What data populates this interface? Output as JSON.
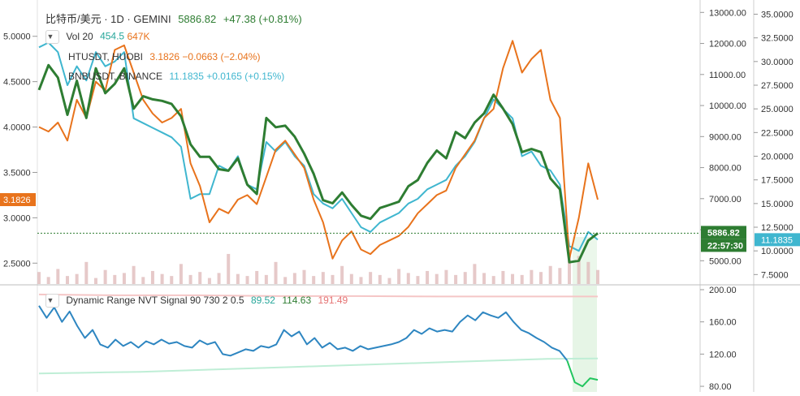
{
  "header": {
    "symbol": "比特币/美元 · 1D · GEMINI",
    "price": "5886.82",
    "change": "+47.38 (+0.81%)"
  },
  "legend": {
    "vol_label": "Vol 20",
    "vol_value": "454.5",
    "vol_value2": "647K",
    "ht_label": "HTUSDT, HUOBI",
    "ht_values": "3.1826 −0.0663 (−2.04%)",
    "bnb_label": "BNBUSDT, BINANCE",
    "bnb_values": "11.1835 +0.0165 (+0.15%)"
  },
  "indicator": {
    "label": "Dynamic Range NVT Signal 90 730 2 0.5",
    "v1": "89.52",
    "v2": "114.63",
    "v3": "191.49"
  },
  "badges": {
    "ht": "3.1826",
    "btc": "5886.82",
    "time": "22:57:30",
    "bnb": "11.1835"
  },
  "colors": {
    "btc": "#2e7d32",
    "ht": "#e8731c",
    "bnb": "#3fb6cf",
    "nvt": "#2e86c1",
    "upper_band": "#f5c6c6",
    "lower_band": "#bfeed6",
    "volume": "#e0bcbc",
    "highlight": "#e6f5e6"
  },
  "chart_data": [
    {
      "type": "line",
      "name": "main-price-pane",
      "left_axis": {
        "ticks": [
          "5.0000",
          "4.5000",
          "4.0000",
          "3.5000",
          "3.0000",
          "2.5000"
        ],
        "range": [
          2.27,
          5.4
        ]
      },
      "mid_axis": {
        "ticks": [
          "13000.00",
          "12000.00",
          "11000.00",
          "10000.00",
          "9000.00",
          "8000.00",
          "7000.00",
          "6000.00",
          "5000.00"
        ],
        "range": [
          4250,
          13400
        ]
      },
      "right_axis": {
        "ticks": [
          "35.0000",
          "32.5000",
          "30.0000",
          "27.5000",
          "25.0000",
          "22.5000",
          "20.0000",
          "17.5000",
          "15.0000",
          "12.5000",
          "10.0000",
          "7.5000"
        ],
        "range": [
          6.5,
          36.5
        ]
      },
      "series": [
        {
          "name": "HTUSDT, HUOBI",
          "scale": "left",
          "values": [
            4.0,
            3.95,
            4.05,
            3.85,
            4.3,
            4.1,
            4.5,
            4.4,
            4.85,
            4.9,
            4.6,
            4.3,
            4.15,
            4.05,
            4.1,
            4.2,
            3.6,
            3.35,
            2.95,
            3.1,
            3.05,
            3.2,
            3.25,
            3.15,
            3.45,
            3.75,
            3.85,
            3.7,
            3.55,
            3.2,
            2.95,
            2.55,
            2.75,
            2.85,
            2.65,
            2.6,
            2.7,
            2.75,
            2.8,
            2.9,
            3.05,
            3.15,
            3.25,
            3.3,
            3.55,
            3.7,
            3.85,
            4.1,
            4.2,
            4.65,
            4.95,
            4.6,
            4.75,
            4.85,
            4.3,
            4.1,
            2.55,
            3.0,
            3.6,
            3.2
          ]
        },
        {
          "name": "比特币/美元",
          "scale": "mid",
          "values": [
            10500,
            11300,
            10900,
            9700,
            10800,
            9600,
            11200,
            10400,
            10700,
            11200,
            9900,
            10300,
            10200,
            10150,
            10050,
            9650,
            8750,
            8350,
            8350,
            7950,
            7900,
            8300,
            7450,
            7150,
            9600,
            9300,
            9350,
            9000,
            8450,
            7800,
            6950,
            6850,
            7200,
            6800,
            6450,
            6350,
            6700,
            6800,
            6900,
            7400,
            7600,
            8150,
            8550,
            8300,
            9150,
            8950,
            9450,
            9750,
            10350,
            9900,
            9400,
            8500,
            8600,
            8500,
            7650,
            7300,
            4950,
            5000,
            5650,
            5886.82
          ]
        },
        {
          "name": "BNBUSDT, BINANCE",
          "scale": "right",
          "values": [
            31.5,
            32.0,
            31.0,
            27.5,
            29.5,
            28.0,
            31.0,
            29.5,
            30.0,
            31.0,
            24.0,
            23.5,
            23.0,
            22.5,
            22.0,
            21.0,
            15.5,
            16.0,
            16.0,
            19.0,
            18.5,
            20.0,
            17.0,
            16.5,
            21.5,
            20.5,
            21.5,
            20.0,
            19.0,
            16.0,
            15.0,
            14.5,
            15.5,
            14.0,
            12.5,
            12.0,
            13.0,
            13.5,
            14.0,
            15.0,
            15.5,
            16.5,
            17.0,
            17.5,
            19.0,
            20.0,
            21.5,
            24.0,
            26.0,
            25.0,
            24.0,
            20.0,
            20.5,
            19.0,
            18.5,
            17.0,
            10.5,
            10.0,
            12.0,
            11.1835
          ]
        }
      ],
      "volume_series": {
        "name": "Vol 20",
        "values": [
          12,
          7,
          15,
          8,
          10,
          22,
          6,
          14,
          9,
          11,
          18,
          7,
          13,
          10,
          8,
          20,
          9,
          12,
          6,
          11,
          30,
          10,
          8,
          13,
          9,
          22,
          7,
          11,
          14,
          8,
          12,
          9,
          18,
          10,
          7,
          12,
          9,
          6,
          15,
          11,
          8,
          13,
          10,
          14,
          9,
          12,
          20,
          11,
          8,
          13,
          10,
          9,
          14,
          12,
          18,
          16,
          34,
          28,
          22,
          14
        ]
      }
    },
    {
      "type": "line",
      "name": "Dynamic Range NVT Signal 90 730 2 0.5",
      "axis": {
        "ticks": [
          "200.00",
          "160.00",
          "120.00",
          "80.00"
        ],
        "range": [
          73,
          205
        ]
      },
      "series": [
        {
          "name": "NVT",
          "values": [
            180,
            165,
            178,
            160,
            173,
            155,
            140,
            150,
            132,
            128,
            138,
            130,
            135,
            128,
            136,
            132,
            138,
            133,
            135,
            130,
            128,
            137,
            132,
            135,
            120,
            118,
            122,
            126,
            124,
            130,
            128,
            132,
            150,
            142,
            148,
            132,
            140,
            128,
            134,
            126,
            128,
            124,
            130,
            126,
            128,
            130,
            132,
            135,
            140,
            150,
            145,
            152,
            148,
            150,
            148,
            160,
            168,
            162,
            172,
            168,
            165,
            172,
            160,
            150,
            146,
            140,
            135,
            128,
            124,
            112,
            85,
            80,
            90,
            88
          ]
        },
        {
          "name": "upper",
          "values": [
            194,
            193,
            193,
            192,
            192,
            191.5,
            191.5,
            191.49
          ]
        },
        {
          "name": "lower",
          "values": [
            96,
            97,
            98,
            100,
            102,
            104,
            106,
            108,
            110,
            112,
            114,
            114.63
          ]
        }
      ]
    }
  ]
}
